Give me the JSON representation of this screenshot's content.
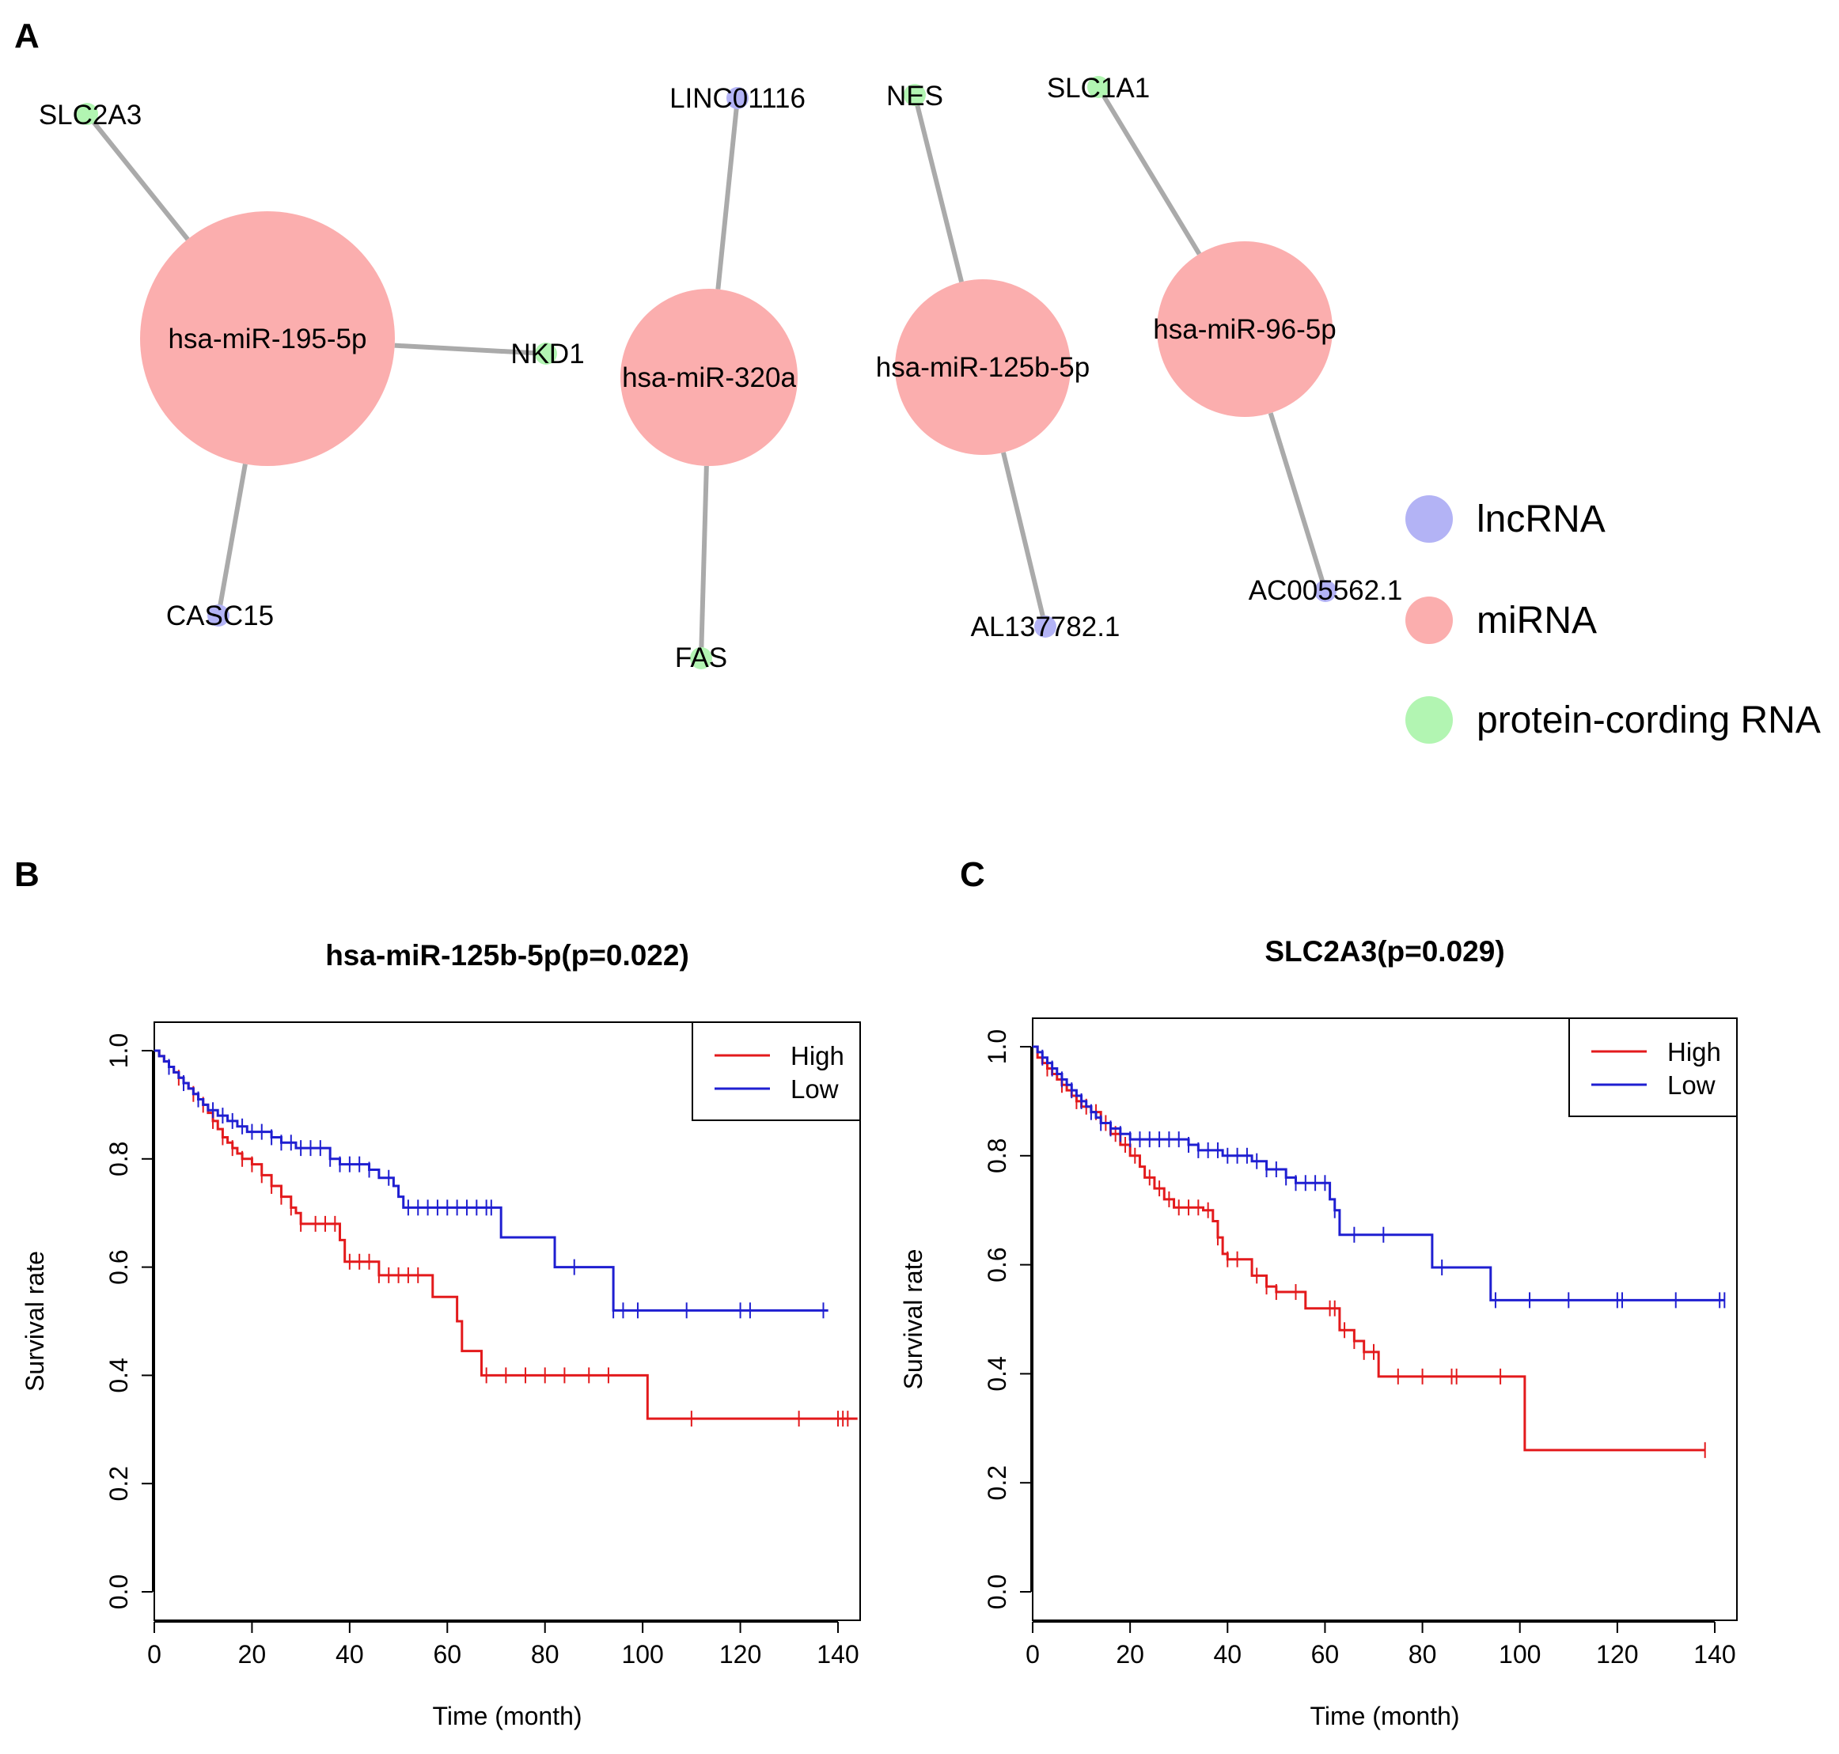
{
  "panels": {
    "a_letter": "A",
    "b_letter": "B",
    "c_letter": "C"
  },
  "colors": {
    "lncRNA": "#b3b3f5",
    "miRNA": "#fbaeae",
    "protein": "#b2f5b2",
    "edge": "#aaaaaa",
    "high": "#e31a1c",
    "low": "#1f1fd1"
  },
  "network": {
    "nodes": [
      {
        "id": "mir195",
        "label": "hsa-miR-195-5p",
        "type": "miRNA",
        "degree": 3
      },
      {
        "id": "mir320",
        "label": "hsa-miR-320a",
        "type": "miRNA",
        "degree": 2
      },
      {
        "id": "mir125",
        "label": "hsa-miR-125b-5p",
        "type": "miRNA",
        "degree": 2
      },
      {
        "id": "mir96",
        "label": "hsa-miR-96-5p",
        "type": "miRNA",
        "degree": 2
      },
      {
        "id": "slc2a3",
        "label": "SLC2A3",
        "type": "protein-cording RNA"
      },
      {
        "id": "nkd1",
        "label": "NKD1",
        "type": "protein-cording RNA"
      },
      {
        "id": "casc15",
        "label": "CASC15",
        "type": "lncRNA"
      },
      {
        "id": "linc01116",
        "label": "LINC01116",
        "type": "lncRNA"
      },
      {
        "id": "fas",
        "label": "FAS",
        "type": "protein-cording RNA"
      },
      {
        "id": "nes",
        "label": "NES",
        "type": "protein-cording RNA"
      },
      {
        "id": "al137782",
        "label": "AL137782.1",
        "type": "lncRNA"
      },
      {
        "id": "slc1a1",
        "label": "SLC1A1",
        "type": "protein-cording RNA"
      },
      {
        "id": "ac005562",
        "label": "AC005562.1",
        "type": "lncRNA"
      }
    ],
    "edges": [
      [
        "mir195",
        "slc2a3"
      ],
      [
        "mir195",
        "nkd1"
      ],
      [
        "mir195",
        "casc15"
      ],
      [
        "mir320",
        "linc01116"
      ],
      [
        "mir320",
        "fas"
      ],
      [
        "mir125",
        "nes"
      ],
      [
        "mir125",
        "al137782"
      ],
      [
        "mir96",
        "slc1a1"
      ],
      [
        "mir96",
        "ac005562"
      ]
    ],
    "legend": [
      "lncRNA",
      "miRNA",
      "protein-cording RNA"
    ]
  },
  "chart_data": [
    {
      "type": "line",
      "subtype": "kaplan-meier",
      "title": "hsa-miR-125b-5p(p=0.022)",
      "xlabel": "Time (month)",
      "ylabel": "Survival rate",
      "xlim": [
        0,
        140
      ],
      "ylim": [
        0,
        1
      ],
      "xticks": [
        "0",
        "20",
        "40",
        "60",
        "80",
        "100",
        "120",
        "140"
      ],
      "yticks": [
        "0.0",
        "0.2",
        "0.4",
        "0.6",
        "0.8",
        "1.0"
      ],
      "legend": [
        "High",
        "Low"
      ],
      "series": [
        {
          "name": "High",
          "steps": [
            [
              0,
              1.0
            ],
            [
              1,
              0.99
            ],
            [
              2,
              0.98
            ],
            [
              3,
              0.97
            ],
            [
              4,
              0.96
            ],
            [
              5,
              0.95
            ],
            [
              6,
              0.94
            ],
            [
              7,
              0.93
            ],
            [
              8,
              0.92
            ],
            [
              9,
              0.91
            ],
            [
              10,
              0.9
            ],
            [
              11,
              0.885
            ],
            [
              12,
              0.87
            ],
            [
              13,
              0.855
            ],
            [
              14,
              0.84
            ],
            [
              15,
              0.83
            ],
            [
              16,
              0.82
            ],
            [
              17,
              0.81
            ],
            [
              18,
              0.8
            ],
            [
              20,
              0.79
            ],
            [
              22,
              0.77
            ],
            [
              24,
              0.75
            ],
            [
              26,
              0.73
            ],
            [
              28,
              0.71
            ],
            [
              29,
              0.7
            ],
            [
              30,
              0.68
            ],
            [
              38,
              0.65
            ],
            [
              39,
              0.61
            ],
            [
              46,
              0.585
            ],
            [
              57,
              0.545
            ],
            [
              62,
              0.5
            ],
            [
              63,
              0.445
            ],
            [
              67,
              0.4
            ],
            [
              101,
              0.32
            ],
            [
              144,
              0.32
            ]
          ],
          "censors": [
            5,
            8,
            10,
            12,
            14,
            16,
            18,
            20,
            22,
            24,
            26,
            28,
            30,
            33,
            35,
            37,
            40,
            42,
            44,
            46,
            48,
            50,
            52,
            54,
            68,
            72,
            76,
            80,
            84,
            89,
            93,
            110,
            132,
            140,
            141,
            142
          ]
        },
        {
          "name": "Low",
          "steps": [
            [
              0,
              1.0
            ],
            [
              1,
              0.99
            ],
            [
              2,
              0.98
            ],
            [
              3,
              0.97
            ],
            [
              4,
              0.96
            ],
            [
              5,
              0.95
            ],
            [
              6,
              0.94
            ],
            [
              7,
              0.93
            ],
            [
              8,
              0.92
            ],
            [
              9,
              0.91
            ],
            [
              10,
              0.9
            ],
            [
              11,
              0.89
            ],
            [
              13,
              0.88
            ],
            [
              15,
              0.87
            ],
            [
              17,
              0.86
            ],
            [
              19,
              0.85
            ],
            [
              24,
              0.84
            ],
            [
              26,
              0.83
            ],
            [
              29,
              0.82
            ],
            [
              36,
              0.8
            ],
            [
              38,
              0.79
            ],
            [
              44,
              0.78
            ],
            [
              46,
              0.765
            ],
            [
              49,
              0.75
            ],
            [
              50,
              0.73
            ],
            [
              51,
              0.71
            ],
            [
              71,
              0.655
            ],
            [
              82,
              0.6
            ],
            [
              94,
              0.52
            ],
            [
              138,
              0.52
            ]
          ],
          "censors": [
            3,
            6,
            9,
            12,
            14,
            16,
            18,
            20,
            22,
            24,
            26,
            28,
            30,
            32,
            34,
            36,
            38,
            40,
            42,
            44,
            48,
            52,
            54,
            56,
            58,
            60,
            62,
            64,
            66,
            68,
            69,
            86,
            94,
            96,
            99,
            109,
            120,
            122,
            137
          ]
        }
      ]
    },
    {
      "type": "line",
      "subtype": "kaplan-meier",
      "title": "SLC2A3(p=0.029)",
      "xlabel": "Time (month)",
      "ylabel": "Survival rate",
      "xlim": [
        0,
        140
      ],
      "ylim": [
        0,
        1
      ],
      "xticks": [
        "0",
        "20",
        "40",
        "60",
        "80",
        "100",
        "120",
        "140"
      ],
      "yticks": [
        "0.0",
        "0.2",
        "0.4",
        "0.6",
        "0.8",
        "1.0"
      ],
      "legend": [
        "High",
        "Low"
      ],
      "series": [
        {
          "name": "High",
          "steps": [
            [
              0,
              1.0
            ],
            [
              1,
              0.98
            ],
            [
              2,
              0.97
            ],
            [
              3,
              0.96
            ],
            [
              4,
              0.95
            ],
            [
              5,
              0.94
            ],
            [
              6,
              0.93
            ],
            [
              7,
              0.92
            ],
            [
              8,
              0.91
            ],
            [
              9,
              0.9
            ],
            [
              10,
              0.89
            ],
            [
              12,
              0.88
            ],
            [
              14,
              0.86
            ],
            [
              16,
              0.84
            ],
            [
              18,
              0.82
            ],
            [
              20,
              0.8
            ],
            [
              22,
              0.78
            ],
            [
              23,
              0.76
            ],
            [
              25,
              0.74
            ],
            [
              27,
              0.72
            ],
            [
              29,
              0.705
            ],
            [
              35,
              0.7
            ],
            [
              37,
              0.68
            ],
            [
              38,
              0.65
            ],
            [
              39,
              0.62
            ],
            [
              40,
              0.61
            ],
            [
              45,
              0.58
            ],
            [
              48,
              0.56
            ],
            [
              50,
              0.55
            ],
            [
              56,
              0.52
            ],
            [
              63,
              0.48
            ],
            [
              66,
              0.46
            ],
            [
              68,
              0.44
            ],
            [
              71,
              0.395
            ],
            [
              101,
              0.26
            ],
            [
              138,
              0.26
            ]
          ],
          "censors": [
            3,
            6,
            9,
            11,
            13,
            15,
            17,
            19,
            21,
            24,
            26,
            28,
            30,
            32,
            34,
            36,
            38,
            40,
            42,
            46,
            48,
            50,
            54,
            61,
            62,
            64,
            66,
            68,
            70,
            75,
            80,
            86,
            87,
            96,
            138
          ]
        },
        {
          "name": "Low",
          "steps": [
            [
              0,
              1.0
            ],
            [
              1,
              0.99
            ],
            [
              2,
              0.98
            ],
            [
              3,
              0.97
            ],
            [
              4,
              0.96
            ],
            [
              5,
              0.95
            ],
            [
              6,
              0.94
            ],
            [
              7,
              0.93
            ],
            [
              8,
              0.92
            ],
            [
              9,
              0.91
            ],
            [
              10,
              0.9
            ],
            [
              11,
              0.89
            ],
            [
              12,
              0.88
            ],
            [
              13,
              0.87
            ],
            [
              14,
              0.86
            ],
            [
              16,
              0.85
            ],
            [
              18,
              0.84
            ],
            [
              20,
              0.83
            ],
            [
              32,
              0.82
            ],
            [
              34,
              0.81
            ],
            [
              39,
              0.8
            ],
            [
              45,
              0.79
            ],
            [
              48,
              0.775
            ],
            [
              52,
              0.76
            ],
            [
              54,
              0.75
            ],
            [
              61,
              0.72
            ],
            [
              62,
              0.7
            ],
            [
              63,
              0.655
            ],
            [
              82,
              0.595
            ],
            [
              94,
              0.535
            ],
            [
              142,
              0.535
            ]
          ],
          "censors": [
            2,
            4,
            6,
            8,
            10,
            12,
            14,
            16,
            18,
            20,
            22,
            24,
            26,
            28,
            30,
            32,
            34,
            36,
            38,
            40,
            42,
            44,
            46,
            48,
            50,
            52,
            54,
            56,
            58,
            60,
            62,
            66,
            72,
            84,
            95,
            102,
            110,
            120,
            121,
            132,
            141,
            142
          ]
        }
      ]
    }
  ]
}
